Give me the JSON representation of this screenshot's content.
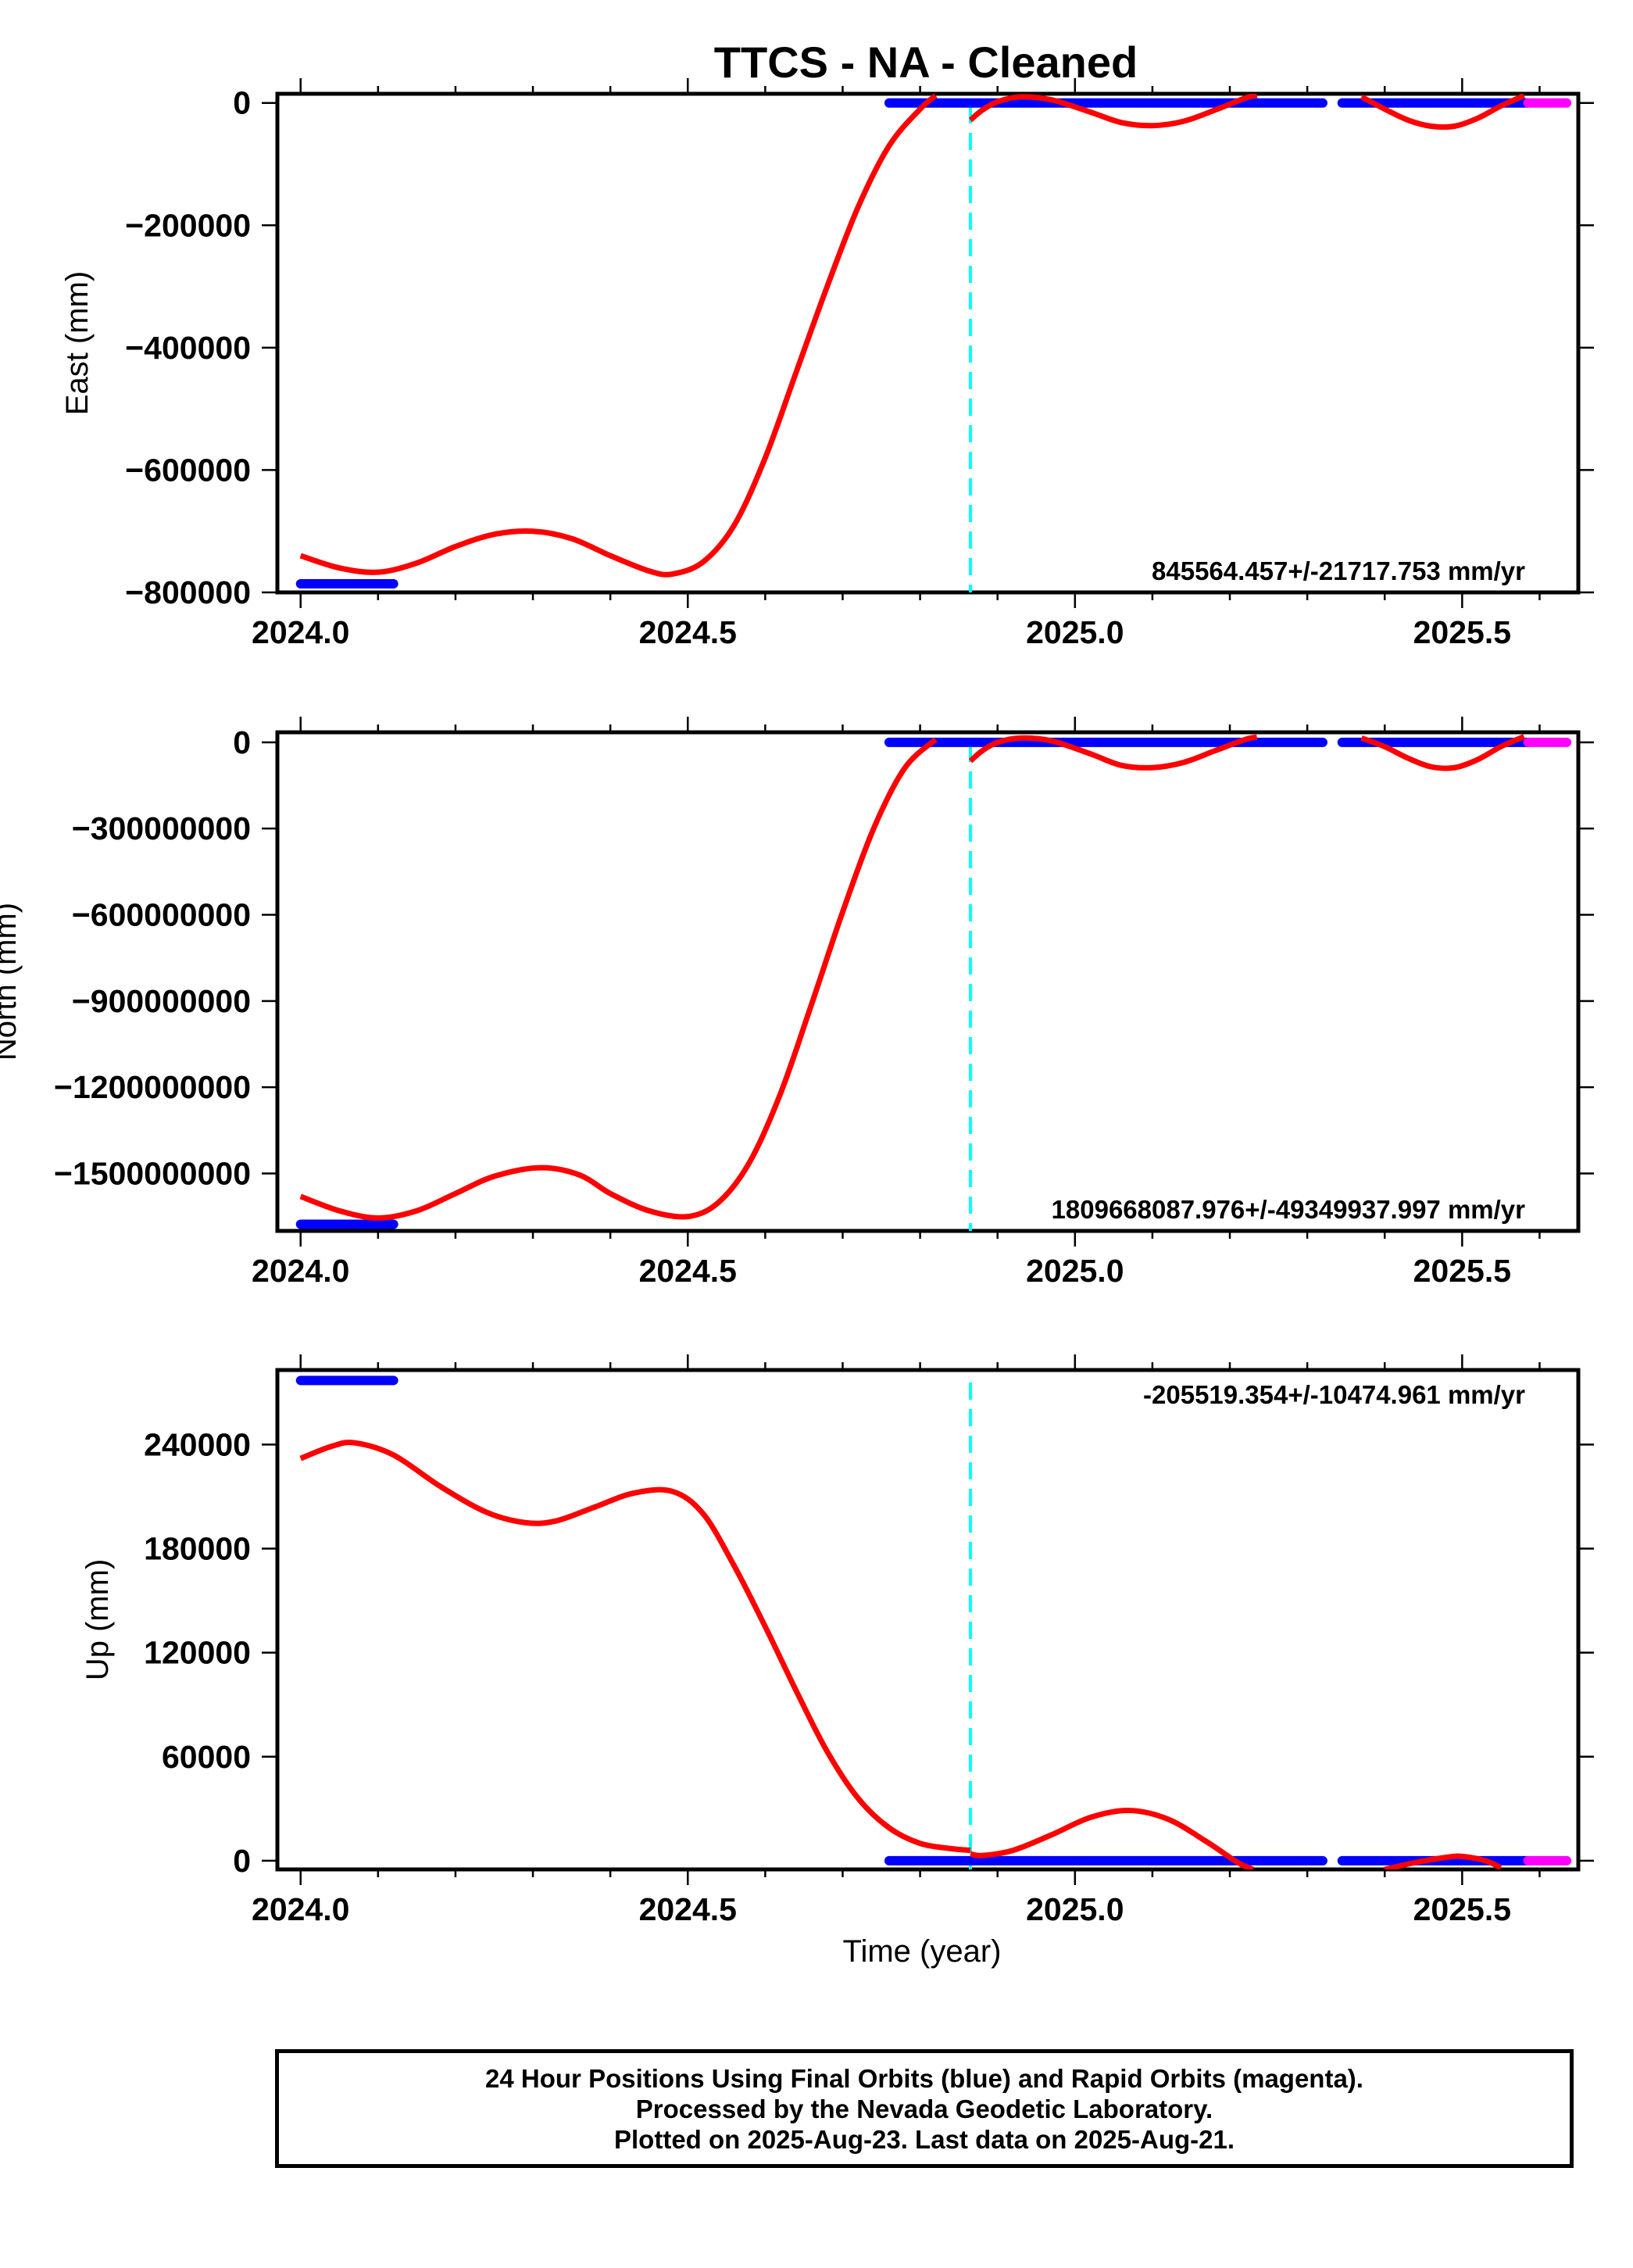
{
  "figure": {
    "title": "TTCS  - NA - Cleaned",
    "x_axis_label": "Time (year)"
  },
  "colors": {
    "final_orbits": "#0000ff",
    "rapid_orbits": "#ff00ff",
    "model_fit": "#ff0000",
    "event_line": "#00ffff",
    "frame": "#000000"
  },
  "chart_data": [
    {
      "type": "line",
      "panel": "east",
      "ylabel": "East (mm)",
      "xlim": [
        2023.97,
        2025.65
      ],
      "ylim": [
        -800000,
        15000
      ],
      "x_ticks": [
        2024.0,
        2024.5,
        2025.0,
        2025.5
      ],
      "x_tick_labels": [
        "2024.0",
        "2024.5",
        "2025.0",
        "2025.5"
      ],
      "y_ticks": [
        0,
        -200000,
        -400000,
        -600000,
        -800000
      ],
      "y_tick_labels": [
        "0",
        "−200000",
        "−400000",
        "−600000",
        "−800000"
      ],
      "rate_text": "845564.457+/-21717.753 mm/yr",
      "rate_position": "bottom-right",
      "event_line_x": 2024.865,
      "series": [
        {
          "kind": "final_orbits",
          "segments": [
            {
              "x": [
                2024.0,
                2024.12
              ],
              "y": [
                -786000,
                -786000
              ]
            },
            {
              "x": [
                2024.76,
                2025.32
              ],
              "y": [
                0,
                0
              ]
            },
            {
              "x": [
                2025.345,
                2025.585
              ],
              "y": [
                0,
                0
              ]
            }
          ]
        },
        {
          "kind": "rapid_orbits",
          "segments": [
            {
              "x": [
                2025.585,
                2025.635
              ],
              "y": [
                0,
                0
              ]
            }
          ]
        },
        {
          "kind": "model_fit",
          "segments": [
            {
              "x": [
                2024.0,
                2024.05,
                2024.1,
                2024.15,
                2024.2,
                2024.25,
                2024.3,
                2024.35,
                2024.4,
                2024.45,
                2024.48,
                2024.52,
                2024.56,
                2024.6,
                2024.64,
                2024.68,
                2024.72,
                2024.76,
                2024.8,
                2024.82
              ],
              "y": [
                -740000,
                -760000,
                -767000,
                -752000,
                -725000,
                -705000,
                -700000,
                -712000,
                -740000,
                -765000,
                -770000,
                -750000,
                -690000,
                -580000,
                -440000,
                -300000,
                -170000,
                -70000,
                -10000,
                12000
              ]
            },
            {
              "x": [
                2024.865,
                2024.88,
                2024.9,
                2024.93,
                2024.97,
                2025.02,
                2025.06,
                2025.1,
                2025.14,
                2025.18,
                2025.22,
                2025.235
              ],
              "y": [
                -28000,
                -12000,
                2000,
                10000,
                5000,
                -15000,
                -32000,
                -37000,
                -30000,
                -12000,
                8000,
                12000
              ]
            },
            {
              "x": [
                2025.37,
                2025.4,
                2025.43,
                2025.46,
                2025.49,
                2025.52,
                2025.55,
                2025.58
              ],
              "y": [
                10000,
                -10000,
                -28000,
                -38000,
                -38000,
                -25000,
                -5000,
                12000
              ]
            }
          ]
        }
      ]
    },
    {
      "type": "line",
      "panel": "north",
      "ylabel": "North (mm)",
      "xlim": [
        2023.97,
        2025.65
      ],
      "ylim": [
        -1700000000,
        35000000
      ],
      "x_ticks": [
        2024.0,
        2024.5,
        2025.0,
        2025.5
      ],
      "x_tick_labels": [
        "2024.0",
        "2024.5",
        "2025.0",
        "2025.5"
      ],
      "y_ticks": [
        0,
        -300000000,
        -600000000,
        -900000000,
        -1200000000,
        -1500000000
      ],
      "y_tick_labels": [
        "0",
        "−300000000",
        "−600000000",
        "−900000000",
        "−1200000000",
        "−1500000000"
      ],
      "rate_text": "1809668087.976+/-49349937.997 mm/yr",
      "rate_position": "bottom-right",
      "event_line_x": 2024.865,
      "series": [
        {
          "kind": "final_orbits",
          "segments": [
            {
              "x": [
                2024.0,
                2024.12
              ],
              "y": [
                -1677000000,
                -1677000000
              ]
            },
            {
              "x": [
                2024.76,
                2025.32
              ],
              "y": [
                0,
                0
              ]
            },
            {
              "x": [
                2025.345,
                2025.585
              ],
              "y": [
                0,
                0
              ]
            }
          ]
        },
        {
          "kind": "rapid_orbits",
          "segments": [
            {
              "x": [
                2025.585,
                2025.635
              ],
              "y": [
                0,
                0
              ]
            }
          ]
        },
        {
          "kind": "model_fit",
          "segments": [
            {
              "x": [
                2024.0,
                2024.05,
                2024.1,
                2024.15,
                2024.2,
                2024.25,
                2024.31,
                2024.36,
                2024.4,
                2024.45,
                2024.5,
                2024.54,
                2024.58,
                2024.62,
                2024.66,
                2024.7,
                2024.74,
                2024.78,
                2024.82
              ],
              "y": [
                -1580000000,
                -1630000000,
                -1655000000,
                -1630000000,
                -1570000000,
                -1510000000,
                -1480000000,
                -1505000000,
                -1570000000,
                -1630000000,
                -1650000000,
                -1600000000,
                -1460000000,
                -1220000000,
                -910000000,
                -590000000,
                -300000000,
                -90000000,
                10000000
              ]
            },
            {
              "x": [
                2024.865,
                2024.88,
                2024.9,
                2024.93,
                2024.97,
                2025.02,
                2025.06,
                2025.1,
                2025.14,
                2025.18,
                2025.22,
                2025.235
              ],
              "y": [
                -65000000,
                -30000000,
                0,
                15000000,
                5000000,
                -40000000,
                -80000000,
                -88000000,
                -70000000,
                -30000000,
                10000000,
                18000000
              ]
            },
            {
              "x": [
                2025.37,
                2025.4,
                2025.43,
                2025.46,
                2025.49,
                2025.52,
                2025.55,
                2025.58
              ],
              "y": [
                15000000,
                -15000000,
                -55000000,
                -85000000,
                -88000000,
                -60000000,
                -15000000,
                20000000
              ]
            }
          ]
        }
      ]
    },
    {
      "type": "line",
      "panel": "up",
      "ylabel": "Up (mm)",
      "xlim": [
        2023.97,
        2025.65
      ],
      "ylim": [
        -5000,
        283000
      ],
      "x_ticks": [
        2024.0,
        2024.5,
        2025.0,
        2025.5
      ],
      "x_tick_labels": [
        "2024.0",
        "2024.5",
        "2025.0",
        "2025.5"
      ],
      "y_ticks": [
        0,
        60000,
        120000,
        180000,
        240000
      ],
      "y_tick_labels": [
        "0",
        "60000",
        "120000",
        "180000",
        "240000"
      ],
      "rate_text": "-205519.354+/-10474.961 mm/yr",
      "rate_position": "top-right",
      "event_line_x": 2024.865,
      "series": [
        {
          "kind": "final_orbits",
          "segments": [
            {
              "x": [
                2024.0,
                2024.12
              ],
              "y": [
                277000,
                277000
              ]
            },
            {
              "x": [
                2024.76,
                2025.32
              ],
              "y": [
                0,
                0
              ]
            },
            {
              "x": [
                2025.345,
                2025.585
              ],
              "y": [
                0,
                0
              ]
            }
          ]
        },
        {
          "kind": "rapid_orbits",
          "segments": [
            {
              "x": [
                2025.585,
                2025.635
              ],
              "y": [
                0,
                0
              ]
            }
          ]
        },
        {
          "kind": "model_fit",
          "segments": [
            {
              "x": [
                2024.0,
                2024.04,
                2024.07,
                2024.12,
                2024.18,
                2024.24,
                2024.29,
                2024.33,
                2024.38,
                2024.43,
                2024.48,
                2024.52,
                2024.56,
                2024.6,
                2024.64,
                2024.68,
                2024.72,
                2024.76,
                2024.8,
                2024.84,
                2024.865
              ],
              "y": [
                232000,
                239000,
                241000,
                234000,
                216000,
                201000,
                195000,
                196000,
                204000,
                212000,
                213000,
                200000,
                170000,
                135000,
                98000,
                63000,
                36000,
                19000,
                10000,
                7000,
                6000
              ]
            },
            {
              "x": [
                2024.865,
                2024.88,
                2024.92,
                2024.97,
                2025.02,
                2025.07,
                2025.12,
                2025.17,
                2025.21,
                2025.23
              ],
              "y": [
                4000,
                3000,
                6000,
                15000,
                25000,
                29000,
                24000,
                11000,
                -1000,
                -5000
              ]
            },
            {
              "x": [
                2025.4,
                2025.44,
                2025.48,
                2025.5,
                2025.53,
                2025.55
              ],
              "y": [
                -5000,
                -1000,
                2000,
                2500,
                0,
                -4000
              ]
            }
          ]
        }
      ]
    }
  ],
  "footer": {
    "lines": [
      "24 Hour Positions Using Final Orbits (blue) and Rapid Orbits (magenta).",
      "Processed by the Nevada Geodetic Laboratory.",
      "Plotted on 2025-Aug-23. Last data on 2025-Aug-21."
    ]
  }
}
